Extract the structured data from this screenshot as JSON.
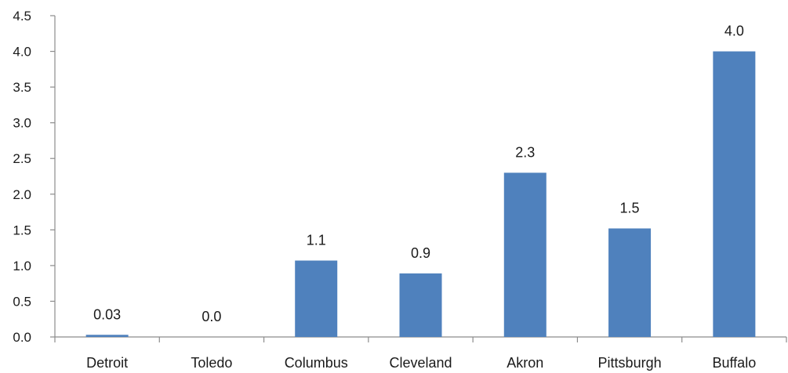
{
  "chart_data": {
    "type": "bar",
    "categories": [
      "Detroit",
      "Toledo",
      "Columbus",
      "Cleveland",
      "Akron",
      "Pittsburgh",
      "Buffalo"
    ],
    "values": [
      0.03,
      0.0,
      1.07,
      0.89,
      2.3,
      1.52,
      4.0
    ],
    "value_labels": [
      "0.03",
      "0.0",
      "1.1",
      "0.9",
      "2.3",
      "1.5",
      "4.0"
    ],
    "y_ticks": [
      "0.0",
      "0.5",
      "1.0",
      "1.5",
      "2.0",
      "2.5",
      "3.0",
      "3.5",
      "4.0",
      "4.5"
    ],
    "ylim": [
      0,
      4.5
    ],
    "title": "",
    "xlabel": "",
    "ylabel": "",
    "grid": false,
    "legend": "none",
    "bar_color": "#4f81bd"
  }
}
